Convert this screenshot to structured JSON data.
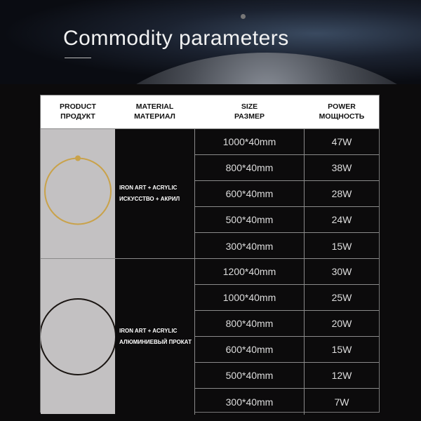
{
  "title": "Commodity parameters",
  "headers": {
    "product": [
      "PRODUCT",
      "ПРОДУКТ"
    ],
    "material": [
      "MATERIAL",
      "МАТЕРИАЛ"
    ],
    "size": [
      "SIZE",
      "РАЗМЕР"
    ],
    "power": [
      "POWER",
      "МОЩНОСТЬ"
    ]
  },
  "groups": [
    {
      "ring_color": "#c9a24a",
      "material": [
        "IRON ART + ACRYLIC",
        "ИСКУССТВО + АКРИЛ"
      ],
      "rows": [
        [
          "1000*40mm",
          "47W"
        ],
        [
          "800*40mm",
          "38W"
        ],
        [
          "600*40mm",
          "28W"
        ],
        [
          "500*40mm",
          "24W"
        ],
        [
          "300*40mm",
          "15W"
        ]
      ]
    },
    {
      "ring_color": "#1a1512",
      "material": [
        "IRON ART + ACRYLIC",
        "АЛЮМИНИЕВЫЙ ПРОКАТ"
      ],
      "rows": [
        [
          "1200*40mm",
          "30W"
        ],
        [
          "1000*40mm",
          "25W"
        ],
        [
          "800*40mm",
          "20W"
        ],
        [
          "600*40mm",
          "15W"
        ],
        [
          "500*40mm",
          "12W"
        ],
        [
          "300*40mm",
          "7W"
        ]
      ]
    }
  ]
}
